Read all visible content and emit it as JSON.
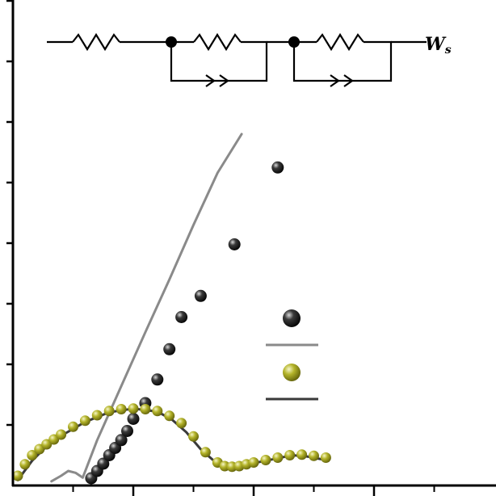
{
  "chart_data": {
    "type": "scatter",
    "title": "",
    "xlabel": "",
    "ylabel": "",
    "xlim": [
      0,
      200
    ],
    "ylim": [
      0,
      80
    ],
    "grid": false,
    "tick_labels_visible": false,
    "x_major_ticks": [
      0,
      50,
      100,
      150,
      200
    ],
    "x_minor_ticks": [
      25,
      75,
      125,
      175
    ],
    "y_major_ticks": [
      0,
      10,
      20,
      30,
      40,
      50,
      60,
      70,
      80
    ],
    "legend": {
      "placement": "right",
      "entries": 4
    },
    "colors": {
      "sample1_points": "#1a1a1a",
      "sample1_fit": "#8a8a8a",
      "sample2_points": "#a6a61e",
      "sample2_fit": "#3a3a3a",
      "axis": "#000000"
    },
    "series": [
      {
        "kind": "points",
        "color": "#1a1a1a",
        "x": [
          32.5,
          35,
          37.5,
          40,
          42.5,
          45,
          47.5,
          50,
          55,
          60,
          65,
          70,
          78,
          92,
          110
        ],
        "y": [
          1.2,
          2.4,
          3.6,
          5,
          6.2,
          7.5,
          9,
          11,
          13.6,
          17.5,
          22.5,
          27.8,
          31.3,
          39.8,
          52.5
        ]
      },
      {
        "kind": "line",
        "color": "#8a8a8a",
        "x": [
          16,
          20,
          23,
          26,
          29,
          35,
          45,
          55,
          65,
          75,
          85,
          95
        ],
        "y": [
          0.7,
          1.6,
          2.4,
          2.1,
          1.3,
          7.5,
          16.4,
          25.3,
          34,
          43,
          51.6,
          58
        ]
      },
      {
        "kind": "points",
        "color": "#a6a61e",
        "x": [
          2,
          5,
          8,
          11,
          14,
          17,
          20,
          25,
          30,
          35,
          40,
          45,
          50,
          55,
          60,
          65,
          70,
          75,
          80,
          85,
          88,
          91,
          94,
          97,
          100,
          105,
          110,
          115,
          120,
          125,
          130
        ],
        "y": [
          1.6,
          3.5,
          5,
          6,
          6.8,
          7.6,
          8.4,
          9.7,
          10.7,
          11.6,
          12.3,
          12.6,
          12.7,
          12.6,
          12.3,
          11.5,
          10.3,
          8.1,
          5.5,
          3.8,
          3.2,
          3.1,
          3.2,
          3.5,
          3.8,
          4.2,
          4.6,
          5,
          5.1,
          4.9,
          4.6
        ]
      },
      {
        "kind": "line",
        "color": "#3a3a3a",
        "x": [
          2,
          8,
          14,
          20,
          30,
          40,
          50,
          60,
          66,
          72,
          78,
          84,
          90,
          100,
          110,
          116,
          122,
          130
        ],
        "y": [
          0.9,
          4.1,
          6.5,
          8.2,
          10.5,
          12.1,
          12.7,
          12.2,
          10.9,
          8.8,
          6,
          3.9,
          3.3,
          3.7,
          4.5,
          5,
          4.8,
          4.2
        ]
      }
    ]
  },
  "circuit": {
    "warburg_label": "W",
    "warburg_subscript": "s"
  }
}
